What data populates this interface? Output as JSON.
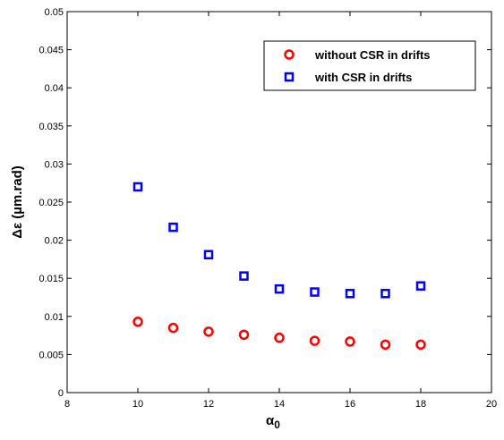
{
  "chart_data": {
    "type": "scatter",
    "title": "",
    "xlabel": "α",
    "xlabel_sub": "0",
    "ylabel": "Δε (µm.rad)",
    "xlim": [
      8,
      20
    ],
    "ylim": [
      0,
      0.05
    ],
    "x_ticks": [
      8,
      10,
      12,
      14,
      16,
      18,
      20
    ],
    "x_tick_labels": [
      "8",
      "10",
      "12",
      "14",
      "16",
      "18",
      "20"
    ],
    "y_ticks": [
      0,
      0.005,
      0.01,
      0.015,
      0.02,
      0.025,
      0.03,
      0.035,
      0.04,
      0.045,
      0.05
    ],
    "y_tick_labels": [
      "0",
      "0.005",
      "0.01",
      "0.015",
      "0.02",
      "0.025",
      "0.03",
      "0.035",
      "0.04",
      "0.045",
      "0.05"
    ],
    "grid": false,
    "legend_position": "top-right",
    "series": [
      {
        "name": "without CSR in drifts",
        "marker": "circle",
        "color": "#ff0000",
        "x": [
          10,
          11,
          12,
          13,
          14,
          15,
          16,
          17,
          18
        ],
        "y": [
          0.0093,
          0.0085,
          0.008,
          0.0076,
          0.0072,
          0.0068,
          0.0067,
          0.0063,
          0.0063
        ]
      },
      {
        "name": "with CSR in drifts",
        "marker": "square",
        "color": "#0000ff",
        "x": [
          10,
          11,
          12,
          13,
          14,
          15,
          16,
          17,
          18
        ],
        "y": [
          0.027,
          0.0217,
          0.0181,
          0.0153,
          0.0136,
          0.0132,
          0.013,
          0.013,
          0.014
        ]
      }
    ]
  }
}
